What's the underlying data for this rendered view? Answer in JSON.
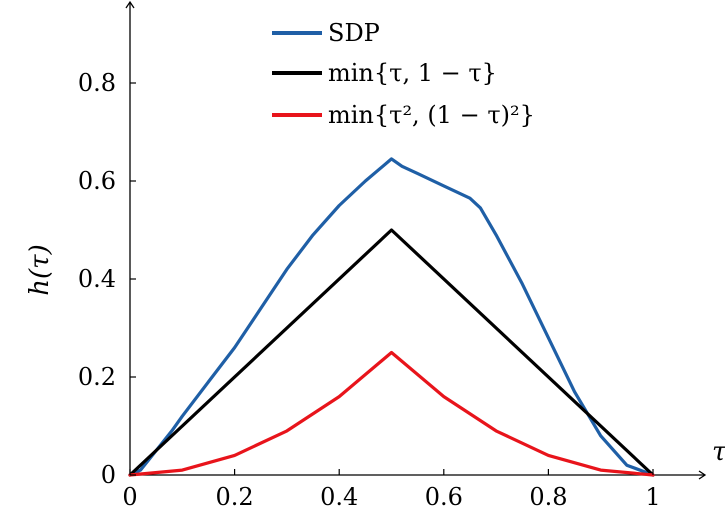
{
  "chart_data": {
    "type": "line",
    "title": "",
    "xlabel": "τ",
    "ylabel": "h(τ)",
    "xlim": [
      0,
      1
    ],
    "ylim": [
      0,
      0.95
    ],
    "grid": false,
    "legend_position": "top-center",
    "x_ticks": [
      "0",
      "0.2",
      "0.4",
      "0.6",
      "0.8",
      "1"
    ],
    "y_ticks": [
      "0",
      "0.2",
      "0.4",
      "0.6",
      "0.8"
    ],
    "series": [
      {
        "name": "SDP",
        "color": "#1f5fa6",
        "x": [
          0,
          0.02,
          0.05,
          0.08,
          0.1,
          0.15,
          0.2,
          0.25,
          0.3,
          0.35,
          0.4,
          0.45,
          0.5,
          0.52,
          0.55,
          0.6,
          0.65,
          0.67,
          0.7,
          0.75,
          0.8,
          0.85,
          0.9,
          0.95,
          1
        ],
        "y": [
          0,
          0.01,
          0.05,
          0.09,
          0.12,
          0.19,
          0.26,
          0.34,
          0.42,
          0.49,
          0.55,
          0.6,
          0.645,
          0.63,
          0.615,
          0.59,
          0.565,
          0.545,
          0.49,
          0.39,
          0.28,
          0.17,
          0.08,
          0.02,
          0
        ]
      },
      {
        "name": "min{τ, 1 − τ}",
        "color": "#000000",
        "x": [
          0,
          0.5,
          1
        ],
        "y": [
          0,
          0.5,
          0
        ]
      },
      {
        "name": "min{τ², (1 − τ)²}",
        "color": "#e8141b",
        "x": [
          0,
          0.1,
          0.2,
          0.3,
          0.4,
          0.5,
          0.6,
          0.7,
          0.8,
          0.9,
          1
        ],
        "y": [
          0,
          0.01,
          0.04,
          0.09,
          0.16,
          0.25,
          0.16,
          0.09,
          0.04,
          0.01,
          0
        ]
      }
    ]
  }
}
